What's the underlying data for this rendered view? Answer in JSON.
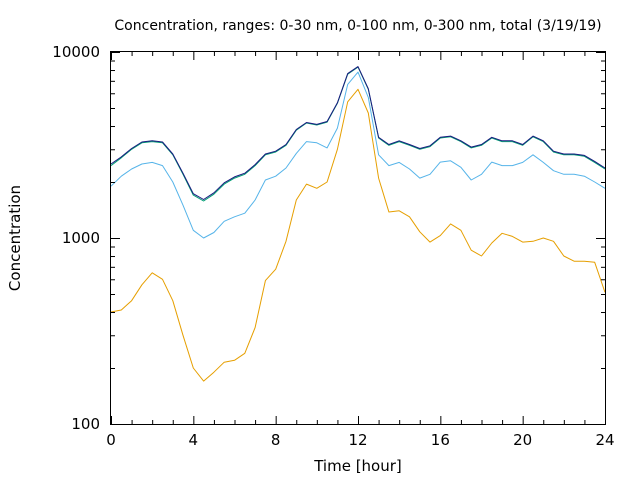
{
  "chart_data": {
    "type": "line",
    "title": "Concentration, ranges: 0-30 nm, 0-100 nm, 0-300 nm, total (3/19/19)",
    "xlabel": "Time [hour]",
    "ylabel": "Concentration",
    "xlim": [
      0,
      24
    ],
    "ylim": [
      100,
      10000
    ],
    "yscale": "log",
    "grid": false,
    "legend": "none",
    "xticks": [
      {
        "value": 0,
        "label": "0"
      },
      {
        "value": 4,
        "label": "4"
      },
      {
        "value": 8,
        "label": "8"
      },
      {
        "value": 12,
        "label": "12"
      },
      {
        "value": 16,
        "label": "16"
      },
      {
        "value": 20,
        "label": "20"
      },
      {
        "value": 24,
        "label": "24"
      }
    ],
    "yticks": [
      {
        "value": 100,
        "label": "100"
      },
      {
        "value": 1000,
        "label": "1000"
      },
      {
        "value": 10000,
        "label": "10000"
      }
    ],
    "x": [
      0,
      0.5,
      1,
      1.5,
      2,
      2.5,
      3,
      3.5,
      4,
      4.5,
      5,
      5.5,
      6,
      6.5,
      7,
      7.5,
      8,
      8.5,
      9,
      9.5,
      10,
      10.5,
      11,
      11.5,
      12,
      12.5,
      13,
      13.5,
      14,
      14.5,
      15,
      15.5,
      16,
      16.5,
      17,
      17.5,
      18,
      18.5,
      19,
      19.5,
      20,
      20.5,
      21,
      21.5,
      22,
      22.5,
      23,
      23.5,
      24
    ],
    "series": [
      {
        "color": "#e69f00",
        "values": [
          400,
          410,
          460,
          560,
          650,
          600,
          460,
          300,
          200,
          170,
          190,
          215,
          220,
          240,
          330,
          590,
          680,
          960,
          1600,
          1950,
          1850,
          2000,
          3000,
          5400,
          6300,
          4700,
          2100,
          1380,
          1400,
          1300,
          1080,
          950,
          1030,
          1190,
          1100,
          860,
          800,
          940,
          1060,
          1020,
          950,
          960,
          1000,
          960,
          800,
          750,
          750,
          740,
          510
        ]
      },
      {
        "color": "#56b4e9",
        "values": [
          1900,
          2150,
          2350,
          2500,
          2550,
          2450,
          2000,
          1500,
          1100,
          1000,
          1070,
          1230,
          1300,
          1360,
          1600,
          2050,
          2150,
          2380,
          2850,
          3300,
          3250,
          3050,
          3900,
          6700,
          7800,
          5700,
          2800,
          2450,
          2550,
          2350,
          2100,
          2200,
          2560,
          2600,
          2400,
          2050,
          2200,
          2560,
          2450,
          2450,
          2550,
          2800,
          2550,
          2300,
          2200,
          2200,
          2150,
          2000,
          1850
        ]
      },
      {
        "color": "#009e73",
        "values": [
          2450,
          2700,
          3000,
          3250,
          3300,
          3250,
          2800,
          2200,
          1700,
          1580,
          1720,
          1950,
          2100,
          2200,
          2450,
          2800,
          2900,
          3150,
          3800,
          4150,
          4050,
          4200,
          5300,
          7600,
          8300,
          6300,
          3450,
          3150,
          3300,
          3150,
          3000,
          3100,
          3450,
          3500,
          3300,
          3050,
          3150,
          3450,
          3300,
          3300,
          3150,
          3500,
          3300,
          2900,
          2800,
          2800,
          2750,
          2550,
          2350
        ]
      },
      {
        "color": "#1a1a80",
        "values": [
          2500,
          2730,
          3030,
          3280,
          3330,
          3280,
          2830,
          2230,
          1730,
          1610,
          1750,
          1980,
          2130,
          2230,
          2480,
          2830,
          2930,
          3180,
          3830,
          4180,
          4080,
          4230,
          5330,
          7650,
          8350,
          6350,
          3480,
          3180,
          3330,
          3180,
          3030,
          3130,
          3480,
          3530,
          3330,
          3080,
          3180,
          3480,
          3330,
          3330,
          3180,
          3530,
          3330,
          2930,
          2830,
          2830,
          2780,
          2580,
          2380
        ]
      }
    ]
  }
}
